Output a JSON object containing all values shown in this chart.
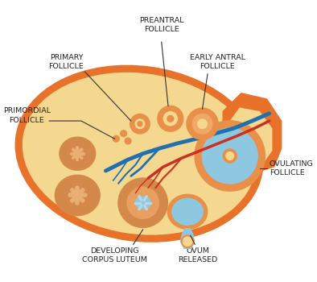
{
  "bg_color": "#ffffff",
  "ovary_outer_color": "#e8722a",
  "ovary_fill_color": "#f5d890",
  "corpus_luteum_color": "#d4894a",
  "corpus_luteum_inner": "#e8b070",
  "antrum_color": "#8dc8e0",
  "blue_vessel": "#2070b0",
  "red_vessel": "#cc3020",
  "label_color": "#222222",
  "line_color": "#333333",
  "label_fontsize": 6.8,
  "labels": {
    "preantral_follicle": "PREANTRAL\nFOLLICLE",
    "primary_follicle": "PRIMARY\nFOLLICLE",
    "early_antral_follicle": "EARLY ANTRAL\nFOLLICLE",
    "primordial_follicle": "PRIMORDIAL\nFOLLICLE",
    "ovulating_follicle": "OVULATING\nFOLLICLE",
    "developing_corpus_luteum": "DEVELOPING\nCORPUS LUTEUM",
    "ovum_released": "OVUM\nRELEASED"
  }
}
